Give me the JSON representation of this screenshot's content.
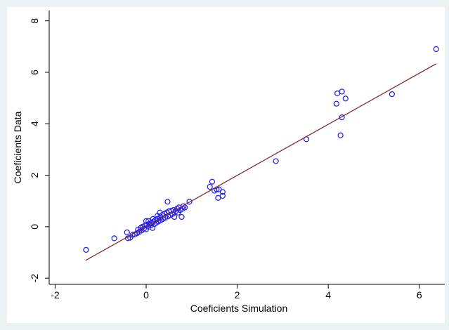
{
  "chart_data": {
    "type": "scatter",
    "x_label": "Coeficients Simulation",
    "y_label": "Coeficients Data",
    "xlim": [
      -2.13,
      6.56
    ],
    "ylim": [
      -2.24,
      8.4
    ],
    "xticks": [
      -2,
      0,
      2,
      4,
      6
    ],
    "yticks": [
      -2,
      0,
      2,
      4,
      6,
      8
    ],
    "series": [
      {
        "type": "scatter",
        "color": "#1a1aff",
        "x": [
          -1.32,
          -0.7,
          -0.42,
          -0.4,
          -0.35,
          -0.3,
          -0.25,
          -0.2,
          -0.18,
          -0.15,
          -0.12,
          -0.1,
          -0.08,
          -0.05,
          -0.02,
          0.0,
          0.0,
          0.02,
          0.05,
          0.07,
          0.1,
          0.12,
          0.14,
          0.16,
          0.18,
          0.2,
          0.22,
          0.25,
          0.27,
          0.3,
          0.32,
          0.35,
          0.37,
          0.4,
          0.42,
          0.45,
          0.48,
          0.5,
          0.53,
          0.55,
          0.58,
          0.6,
          0.62,
          0.65,
          0.68,
          0.7,
          0.72,
          0.75,
          0.78,
          0.8,
          0.82,
          0.85,
          0.3,
          0.25,
          0.15,
          0.05,
          0.47,
          0.95,
          1.4,
          1.45,
          1.5,
          1.55,
          1.6,
          1.58,
          1.68,
          1.68,
          2.85,
          3.52,
          4.18,
          4.2,
          4.3,
          4.38,
          4.3,
          4.27,
          5.4,
          6.37
        ],
        "values": [
          -0.9,
          -0.45,
          -0.22,
          -0.45,
          -0.43,
          -0.32,
          -0.3,
          -0.25,
          -0.12,
          -0.2,
          -0.05,
          -0.15,
          0.0,
          -0.08,
          0.05,
          -0.1,
          0.22,
          0.08,
          0.0,
          0.12,
          0.05,
          0.15,
          -0.05,
          0.2,
          0.1,
          0.25,
          0.15,
          0.3,
          0.2,
          0.35,
          0.25,
          0.45,
          0.3,
          0.5,
          0.35,
          0.55,
          0.4,
          0.6,
          0.45,
          0.62,
          0.5,
          0.65,
          0.38,
          0.6,
          0.7,
          0.55,
          0.75,
          0.65,
          0.38,
          0.7,
          0.8,
          0.75,
          0.55,
          0.42,
          0.3,
          0.22,
          0.97,
          0.97,
          1.55,
          1.75,
          1.4,
          1.45,
          1.45,
          1.12,
          1.35,
          1.2,
          2.55,
          3.4,
          4.78,
          5.18,
          5.25,
          4.98,
          4.25,
          3.55,
          5.15,
          6.9
        ]
      },
      {
        "type": "line",
        "color": "#8b2c2c",
        "x": [
          -1.33,
          6.37
        ],
        "values": [
          -1.31,
          6.33
        ]
      }
    ]
  }
}
